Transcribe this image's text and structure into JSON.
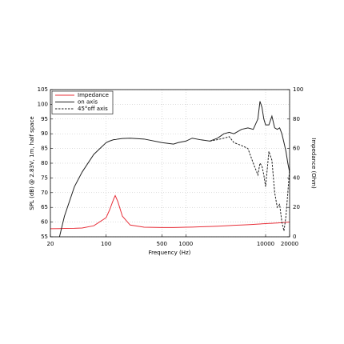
{
  "chart_data": {
    "type": "line",
    "xlabel": "Frequency (Hz)",
    "ylabel": "SPL (dB) @ 2.83V, 1m, half space",
    "y2label": "Impedance (Ohm)",
    "xscale": "log",
    "xlim": [
      20,
      20000
    ],
    "xticks": [
      20,
      100,
      500,
      1000,
      10000,
      20000
    ],
    "ylim": [
      55,
      105
    ],
    "yticks": [
      55,
      60,
      65,
      70,
      75,
      80,
      85,
      90,
      95,
      100,
      105
    ],
    "y2lim": [
      0,
      100
    ],
    "y2ticks": [
      0,
      20,
      40,
      60,
      80,
      100
    ],
    "grid": true,
    "legend": "upper left",
    "x": [
      20,
      26,
      30,
      40,
      50,
      70,
      100,
      110,
      125,
      130,
      140,
      160,
      200,
      300,
      500,
      700,
      800,
      1000,
      1200,
      1500,
      2000,
      2500,
      3000,
      3500,
      4000,
      5000,
      6000,
      7000,
      8000,
      8500,
      9000,
      9500,
      10000,
      11000,
      12000,
      13000,
      14000,
      15000,
      16000,
      17000,
      18000,
      19000,
      20000
    ],
    "series": [
      {
        "name": "Impedance",
        "color": "#e8303a",
        "axis": "y2",
        "dashed": false,
        "values": [
          5.5,
          5.6,
          5.7,
          5.8,
          6,
          7.5,
          13,
          18,
          26,
          28,
          24,
          14,
          8,
          6.5,
          6.3,
          6.3,
          6.4,
          6.5,
          6.6,
          6.8,
          7,
          7.2,
          7.4,
          7.6,
          7.8,
          8,
          8.2,
          8.4,
          8.6,
          8.7,
          8.8,
          8.9,
          9,
          9.1,
          9.2,
          9.3,
          9.4,
          9.5,
          9.6,
          9.7,
          9.8,
          9.9,
          10
        ]
      },
      {
        "name": "on axis",
        "color": "#222222",
        "dashed": false,
        "values": [
          null,
          55,
          62,
          72,
          77,
          83,
          87,
          87.5,
          88,
          88,
          88.2,
          88.4,
          88.5,
          88.2,
          87,
          86.5,
          87,
          87.5,
          88.5,
          88,
          87.5,
          88.5,
          90,
          90.5,
          90,
          91.5,
          92,
          91.5,
          95,
          101,
          99,
          95,
          93,
          93,
          96,
          92,
          91.5,
          92,
          90,
          87,
          84,
          80,
          77
        ]
      },
      {
        "name": "45°off axis",
        "color": "#222222",
        "dashed": true,
        "values": [
          null,
          null,
          null,
          null,
          null,
          null,
          null,
          null,
          null,
          null,
          null,
          null,
          null,
          null,
          null,
          null,
          null,
          null,
          null,
          null,
          87.5,
          88,
          88.5,
          89,
          87,
          86,
          85,
          80,
          76,
          80,
          79,
          76,
          72,
          84,
          81,
          70,
          65,
          66,
          60,
          57,
          62,
          70,
          78
        ]
      }
    ]
  }
}
